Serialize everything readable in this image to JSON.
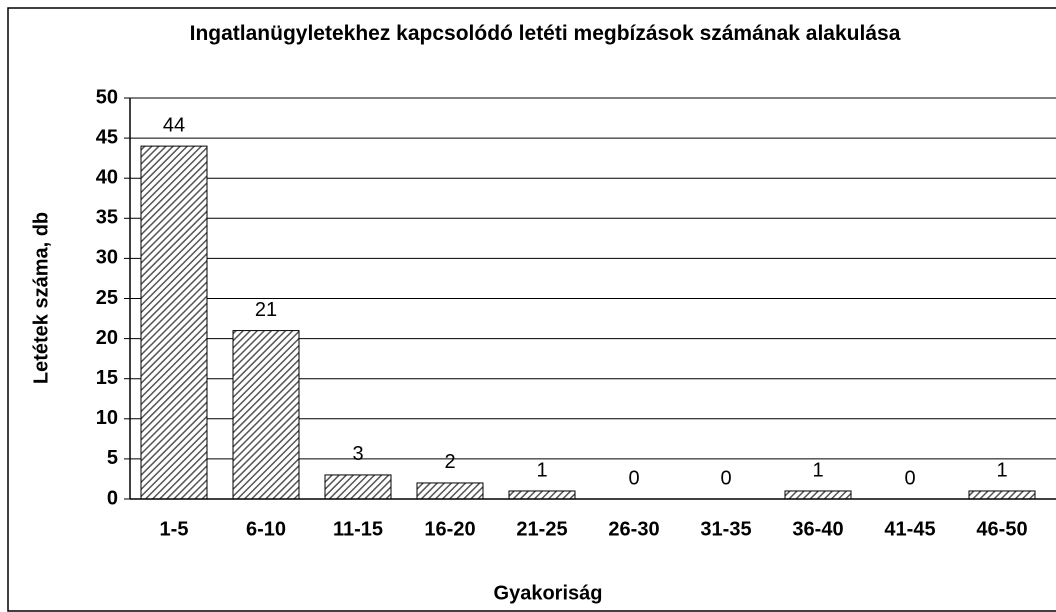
{
  "chart_data": {
    "type": "bar",
    "title": "Ingatlanügyletekhez kapcsolódó letéti megbízások számának alakulása",
    "x_label": "Gyakoriság",
    "y_label": "Letétek száma, db",
    "categories": [
      "1-5",
      "6-10",
      "11-15",
      "16-20",
      "21-25",
      "26-30",
      "31-35",
      "36-40",
      "41-45",
      "46-50"
    ],
    "values": [
      44,
      21,
      3,
      2,
      1,
      0,
      0,
      1,
      0,
      1
    ],
    "ylim": [
      0,
      50
    ],
    "yticks": [
      0,
      5,
      10,
      15,
      20,
      25,
      30,
      35,
      40,
      45,
      50
    ],
    "grid": true
  }
}
